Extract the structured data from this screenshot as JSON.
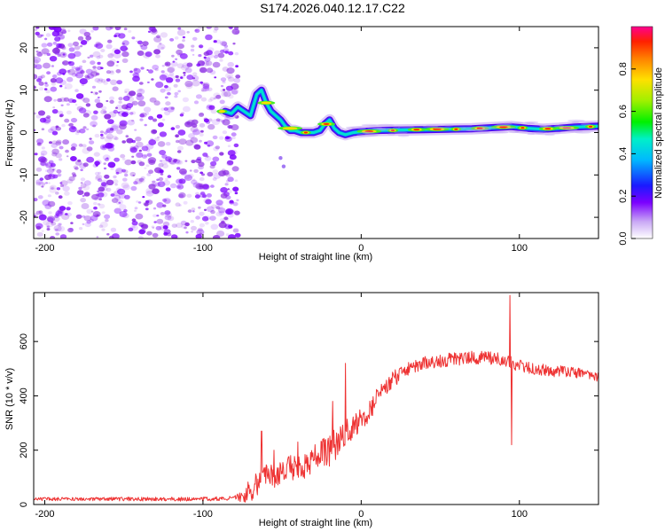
{
  "figure": {
    "title": "S174.2026.040.12.17.C22"
  },
  "colors": {
    "snr_line": "#ee3333",
    "axis": "#000000",
    "track_bright": "#00e0d0",
    "noise": "#8a2be2"
  },
  "chart_data": [
    {
      "type": "heatmap",
      "title": "S174.2026.040.12.17.C22",
      "xlabel": "Height of straight line (km)",
      "ylabel": "Frequency (Hz)",
      "xlim": [
        -207,
        150
      ],
      "ylim": [
        -25,
        25
      ],
      "xticks": [
        -200,
        -100,
        0,
        100
      ],
      "xtick_labels": [
        "-200",
        "-100",
        "0",
        "100"
      ],
      "yticks": [
        -20,
        -10,
        0,
        10,
        20
      ],
      "ytick_labels": [
        "-20",
        "-10",
        "0",
        "10",
        "20"
      ],
      "noise_region_x": [
        -207,
        -78
      ],
      "track": {
        "x": [
          -86,
          -82,
          -78,
          -74,
          -70,
          -66,
          -63,
          -60,
          -57,
          -54,
          -51,
          -48,
          -45,
          -42,
          -38,
          -34,
          -30,
          -26,
          -23,
          -20,
          -17,
          -14,
          -10,
          -5,
          0,
          10,
          25,
          40,
          55,
          70,
          85,
          95,
          105,
          115,
          125,
          135,
          150
        ],
        "y": [
          5,
          4.5,
          6,
          5,
          4,
          9,
          10,
          7,
          5,
          4,
          3,
          1.5,
          0.5,
          0.5,
          0,
          0,
          0,
          0.5,
          2,
          3,
          1,
          0,
          -0.5,
          0,
          0.2,
          0.5,
          0.6,
          0.7,
          0.8,
          0.9,
          1.2,
          1.4,
          1.0,
          0.8,
          1.0,
          1.3,
          1.5
        ]
      },
      "stray_points": {
        "x": [
          -51,
          -49
        ],
        "y": [
          -6,
          -8
        ]
      },
      "colorbar": {
        "label": "Normalized spectral amplitude",
        "range": [
          0,
          1
        ],
        "ticks": [
          0.0,
          0.2,
          0.4,
          0.6,
          0.8
        ],
        "tick_labels": [
          "0.0",
          "0.2",
          "0.4",
          "0.6",
          "0.8"
        ]
      }
    },
    {
      "type": "line",
      "xlabel": "Height of straight line (km)",
      "ylabel": "SNR (10 * v/v)",
      "xlim": [
        -207,
        150
      ],
      "ylim": [
        0,
        780
      ],
      "xticks": [
        -200,
        -100,
        0,
        100
      ],
      "xtick_labels": [
        "-200",
        "-100",
        "0",
        "100"
      ],
      "yticks": [
        0,
        200,
        400,
        600
      ],
      "ytick_labels": [
        "0",
        "200",
        "400",
        "600"
      ],
      "envelope": {
        "x": [
          -207,
          -100,
          -78,
          -70,
          -65,
          -60,
          -50,
          -40,
          -30,
          -20,
          -10,
          0,
          10,
          20,
          30,
          40,
          50,
          60,
          70,
          80,
          90,
          100,
          110,
          120,
          130,
          140,
          150
        ],
        "y": [
          20,
          20,
          25,
          50,
          80,
          100,
          120,
          140,
          165,
          200,
          260,
          310,
          390,
          460,
          500,
          520,
          530,
          535,
          540,
          540,
          535,
          510,
          500,
          490,
          490,
          480,
          470
        ]
      },
      "noise_amplitude": {
        "x": [
          -207,
          -80,
          -70,
          -50,
          -20,
          0,
          30,
          60,
          150
        ],
        "y": [
          6,
          8,
          45,
          50,
          60,
          45,
          25,
          25,
          20
        ]
      },
      "spikes": {
        "x": [
          -63,
          -55,
          -40,
          -18,
          -10,
          94,
          95
        ],
        "y": [
          270,
          200,
          230,
          380,
          520,
          770,
          220
        ]
      }
    }
  ]
}
